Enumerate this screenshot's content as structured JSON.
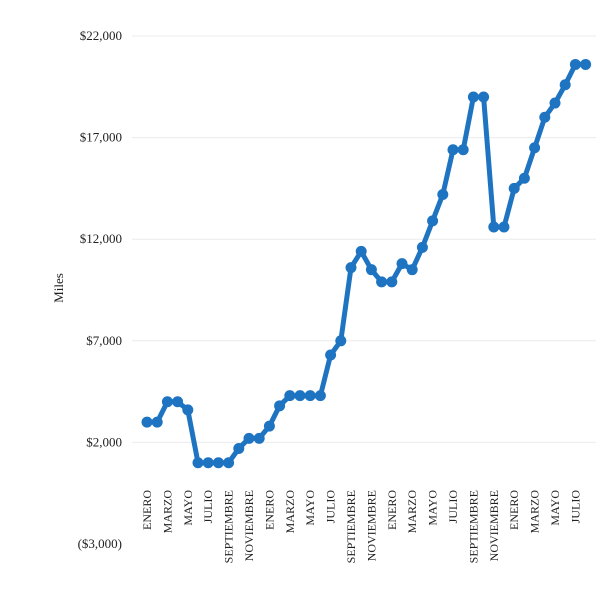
{
  "chart_data": {
    "type": "line",
    "ylabel": "Miles",
    "ylim": [
      -3000,
      22000
    ],
    "ytick_values": [
      -3000,
      2000,
      7000,
      12000,
      17000,
      22000
    ],
    "ytick_labels": [
      "($3,000)",
      "$2,000",
      "$7,000",
      "$12,000",
      "$17,000",
      "$22,000"
    ],
    "grid": true,
    "line_color": "#1f74c2",
    "xtick_labels": [
      {
        "i": 0,
        "label": "ENERO"
      },
      {
        "i": 2,
        "label": "MARZO"
      },
      {
        "i": 4,
        "label": "MAYO"
      },
      {
        "i": 6,
        "label": "JULIO"
      },
      {
        "i": 8,
        "label": "SEPTIEMBRE"
      },
      {
        "i": 10,
        "label": "NOVIEMBRE"
      },
      {
        "i": 12,
        "label": "ENERO"
      },
      {
        "i": 14,
        "label": "MARZO"
      },
      {
        "i": 16,
        "label": "MAYO"
      },
      {
        "i": 18,
        "label": "JULIO"
      },
      {
        "i": 20,
        "label": "SEPTIEMBRE"
      },
      {
        "i": 22,
        "label": "NOVIEMBRE"
      },
      {
        "i": 24,
        "label": "ENERO"
      },
      {
        "i": 26,
        "label": "MARZO"
      },
      {
        "i": 28,
        "label": "MAYO"
      },
      {
        "i": 30,
        "label": "JULIO"
      },
      {
        "i": 32,
        "label": "SEPTIEMBRE"
      },
      {
        "i": 34,
        "label": "NOVIEMBRE"
      },
      {
        "i": 36,
        "label": "ENERO"
      },
      {
        "i": 38,
        "label": "MARZO"
      },
      {
        "i": 40,
        "label": "MAYO"
      },
      {
        "i": 42,
        "label": "JULIO"
      }
    ],
    "series": [
      {
        "values": [
          3000,
          3000,
          4000,
          4000,
          3600,
          1000,
          1000,
          1000,
          1000,
          1700,
          2200,
          2200,
          2800,
          3800,
          4300,
          4300,
          4300,
          4300,
          6300,
          7000,
          10600,
          11400,
          10500,
          9900,
          9900,
          10800,
          10500,
          11600,
          12900,
          14200,
          16400,
          16400,
          19000,
          19000,
          12600,
          12600,
          14500,
          15000,
          16500,
          18000,
          18700,
          19600,
          20600,
          20600
        ]
      }
    ]
  }
}
